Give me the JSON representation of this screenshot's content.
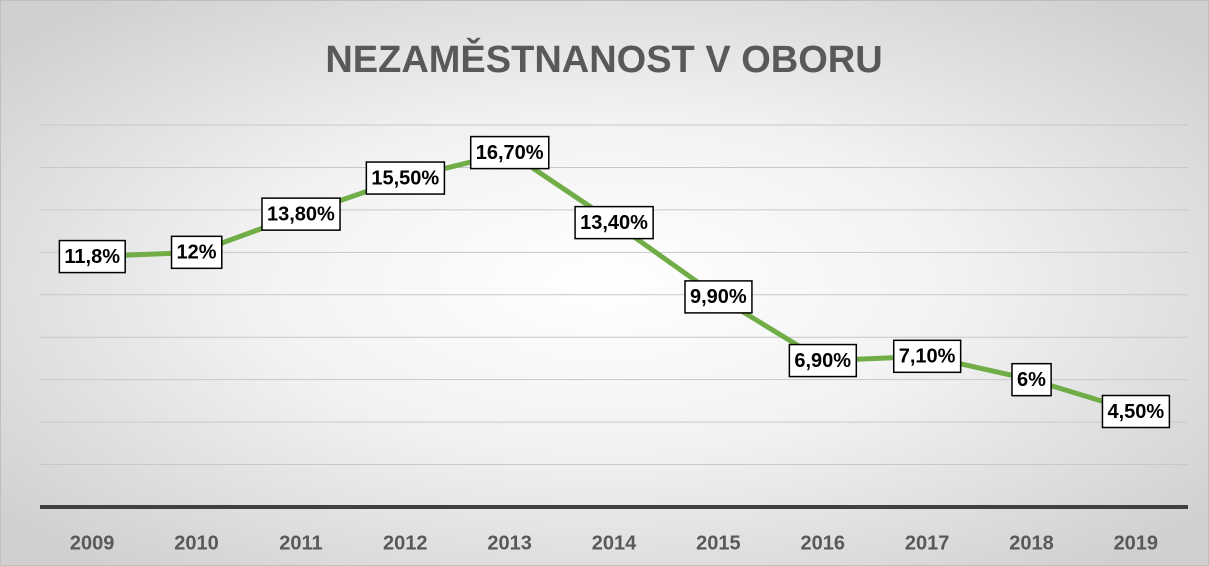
{
  "chart_data": {
    "type": "line",
    "title": "NEZAMĚSTNANOST V OBORU",
    "categories": [
      "2009",
      "2010",
      "2011",
      "2012",
      "2013",
      "2014",
      "2015",
      "2016",
      "2017",
      "2018",
      "2019"
    ],
    "values": [
      11.8,
      12,
      13.8,
      15.5,
      16.7,
      13.4,
      9.9,
      6.9,
      7.1,
      6,
      4.5
    ],
    "value_labels": [
      "11,8%",
      "12%",
      "13,80%",
      "15,50%",
      "16,70%",
      "13,40%",
      "9,90%",
      "6,90%",
      "7,10%",
      "6%",
      "4,50%"
    ],
    "color": "#70ad47",
    "ylim": [
      0,
      18
    ],
    "yticks": [
      0,
      2,
      4,
      6,
      8,
      10,
      12,
      14,
      16,
      18
    ],
    "grid": true
  }
}
